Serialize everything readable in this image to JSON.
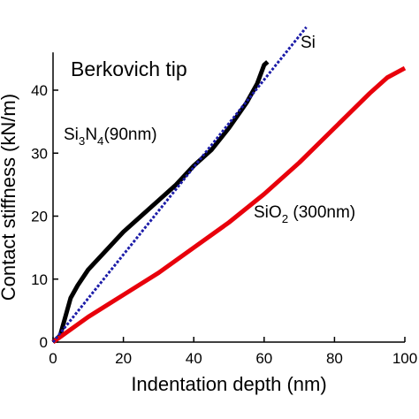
{
  "chart_data": {
    "type": "line",
    "xlabel": "Indentation depth (nm)",
    "ylabel": "Contact stiffness (kN/m)",
    "annotations": [
      "Berkovich tip",
      [
        "Si",
        "3",
        "N",
        "4",
        "(90nm)"
      ],
      [
        "SiO",
        "2",
        " (300nm)"
      ],
      "Si"
    ],
    "xlim": [
      0,
      100
    ],
    "xticks": [
      0,
      20,
      40,
      60,
      80,
      100
    ],
    "ylim": [
      0,
      46
    ],
    "yticks": [
      0,
      10,
      20,
      30,
      40
    ],
    "series": [
      {
        "name": "Si3N4",
        "color": "#000000",
        "style": "solid",
        "x": [
          0,
          2,
          3,
          4,
          5,
          7,
          10,
          15,
          20,
          25,
          30,
          35,
          40,
          45,
          50,
          55,
          58,
          60,
          61
        ],
        "values": [
          0,
          1,
          3,
          5,
          7,
          9,
          11.5,
          14.5,
          17.5,
          20,
          22.5,
          25,
          28,
          30.5,
          34,
          38,
          41,
          44,
          44.5
        ]
      },
      {
        "name": "SiO2",
        "color": "#e8000b",
        "style": "solid",
        "x": [
          0,
          5,
          10,
          20,
          30,
          40,
          50,
          60,
          70,
          80,
          90,
          95,
          100
        ],
        "values": [
          0,
          2,
          4,
          7.5,
          11,
          15,
          19,
          23.5,
          28.5,
          34,
          39.5,
          42,
          43.5
        ]
      },
      {
        "name": "Si",
        "color": "#1c1ca8",
        "style": "dotted",
        "x": [
          0,
          72
        ],
        "values": [
          0,
          50
        ]
      }
    ]
  }
}
